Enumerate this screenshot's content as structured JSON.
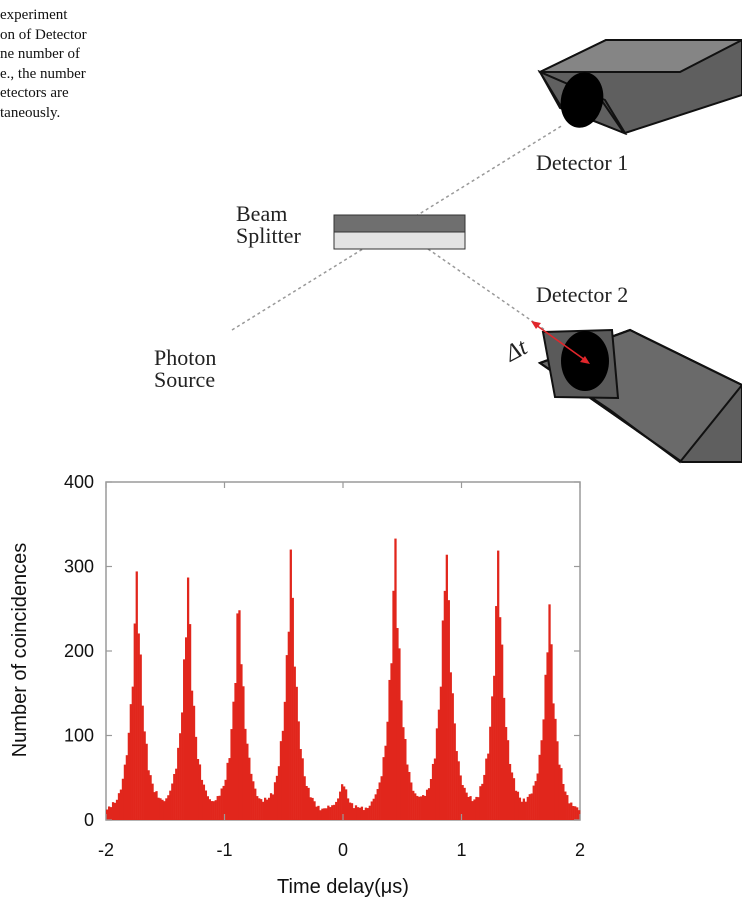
{
  "caption": {
    "lines": [
      "experiment",
      "on of Detector",
      "ne number of",
      "e., the number",
      "etectors are",
      "taneously."
    ]
  },
  "diagram": {
    "beam_splitter_label": [
      "Beam",
      "Splitter"
    ],
    "photon_source_label": [
      "Photon",
      "Source"
    ],
    "detector1_label": "Detector 1",
    "detector2_label": "Detector 2",
    "delta_t_label": "Δt",
    "colors": {
      "detector_body": "#6b6b6b",
      "detector_top": "#8a8a8a",
      "arrow": "#e1262b"
    }
  },
  "chart_data": {
    "type": "bar",
    "xlabel": "Time delay(μs)",
    "ylabel": "Number of coincidences",
    "xlim": [
      -2,
      2
    ],
    "ylim": [
      0,
      400
    ],
    "xticks": [
      -2,
      -1,
      0,
      1,
      2
    ],
    "yticks": [
      0,
      100,
      200,
      300,
      400
    ],
    "grid": false,
    "bar_color": "#e1261c",
    "peaks": [
      {
        "x": -1.74,
        "height": 300
      },
      {
        "x": -1.31,
        "height": 292
      },
      {
        "x": -0.88,
        "height": 274
      },
      {
        "x": -0.44,
        "height": 323
      },
      {
        "x": 0.0,
        "height": 45
      },
      {
        "x": 0.44,
        "height": 333
      },
      {
        "x": 0.87,
        "height": 346
      },
      {
        "x": 1.31,
        "height": 323
      },
      {
        "x": 1.74,
        "height": 264
      }
    ],
    "baseline": 8
  }
}
